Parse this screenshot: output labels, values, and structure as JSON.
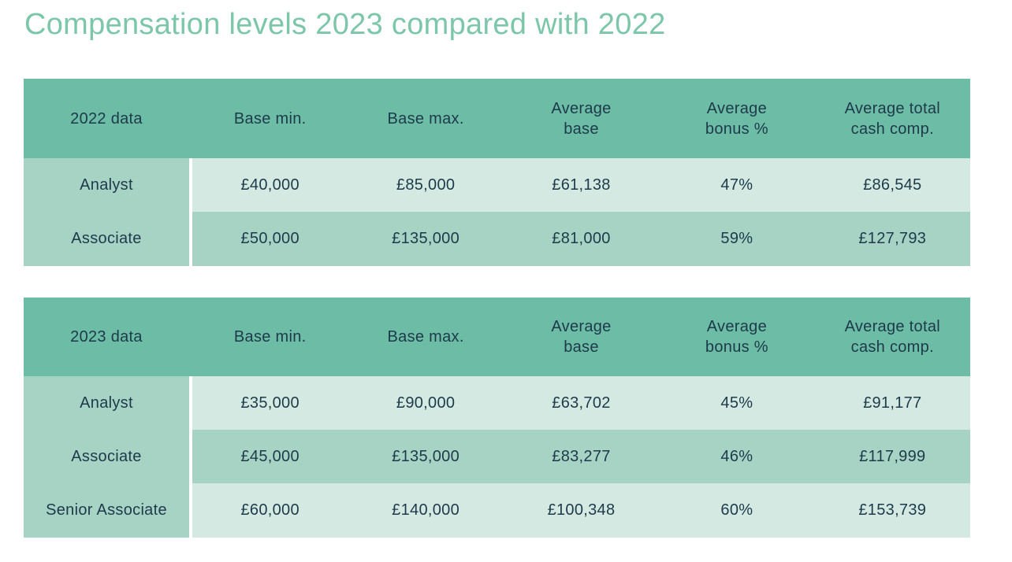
{
  "title": "Compensation levels 2023 compared with 2022",
  "colors": {
    "title_text": "#7cc6a9",
    "header_bg": "#6dbca6",
    "label_column_bg": "#a7d3c5",
    "row_light_bg": "#d4e9e1",
    "row_dark_bg": "#a7d3c5",
    "table_text": "#1d3a4a",
    "page_bg": "#ffffff"
  },
  "chart_data": [
    {
      "type": "table",
      "title": "2022 data",
      "columns": [
        "2022 data",
        "Base min.",
        "Base max.",
        "Average\nbase",
        "Average\nbonus %",
        "Average total\ncash comp."
      ],
      "rows": [
        [
          "Analyst",
          "£40,000",
          "£85,000",
          "£61,138",
          "47%",
          "£86,545"
        ],
        [
          "Associate",
          "£50,000",
          "£135,000",
          "£81,000",
          "59%",
          "£127,793"
        ]
      ]
    },
    {
      "type": "table",
      "title": "2023 data",
      "columns": [
        "2023 data",
        "Base min.",
        "Base max.",
        "Average\nbase",
        "Average\nbonus %",
        "Average total\ncash comp."
      ],
      "rows": [
        [
          "Analyst",
          "£35,000",
          "£90,000",
          "£63,702",
          "45%",
          "£91,177"
        ],
        [
          "Associate",
          "£45,000",
          "£135,000",
          "£83,277",
          "46%",
          "£117,999"
        ],
        [
          "Senior Associate",
          "£60,000",
          "£140,000",
          "£100,348",
          "60%",
          "£153,739"
        ]
      ]
    }
  ]
}
